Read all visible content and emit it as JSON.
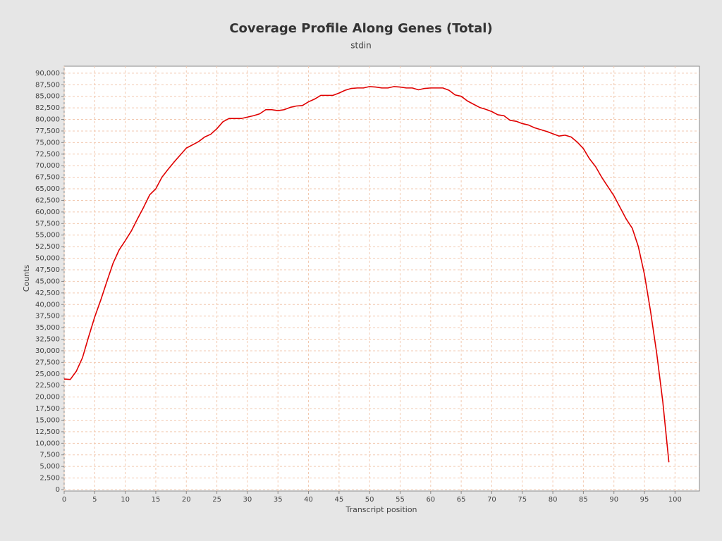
{
  "chart_data": {
    "type": "line",
    "title": "Coverage Profile Along Genes (Total)",
    "subtitle": "stdin",
    "x_label": "Transcript position",
    "y_label": "Counts",
    "color": "#e00000",
    "grid": true,
    "xlim": [
      0,
      104
    ],
    "ylim": [
      0,
      91500
    ],
    "xticks": [
      0,
      5,
      10,
      15,
      20,
      25,
      30,
      35,
      40,
      45,
      50,
      55,
      60,
      65,
      70,
      75,
      80,
      85,
      90,
      95,
      100
    ],
    "yticks": [
      0,
      {
        "value": 2500,
        "label": "2,500"
      },
      {
        "value": 5000,
        "label": "5,000"
      },
      {
        "value": 7500,
        "label": "7,500"
      },
      {
        "value": 10000,
        "label": "10,000"
      },
      {
        "value": 12500,
        "label": "12,500"
      },
      {
        "value": 15000,
        "label": "15,000"
      },
      {
        "value": 17500,
        "label": "17,500"
      },
      {
        "value": 20000,
        "label": "20,000"
      },
      {
        "value": 22500,
        "label": "22,500"
      },
      {
        "value": 25000,
        "label": "25,000"
      },
      {
        "value": 27500,
        "label": "27,500"
      },
      {
        "value": 30000,
        "label": "30,000"
      },
      {
        "value": 32500,
        "label": "32,500"
      },
      {
        "value": 35000,
        "label": "35,000"
      },
      {
        "value": 37500,
        "label": "37,500"
      },
      {
        "value": 40000,
        "label": "40,000"
      },
      {
        "value": 42500,
        "label": "42,500"
      },
      {
        "value": 45000,
        "label": "45,000"
      },
      {
        "value": 47500,
        "label": "47,500"
      },
      {
        "value": 50000,
        "label": "50,000"
      },
      {
        "value": 52500,
        "label": "52,500"
      },
      {
        "value": 55000,
        "label": "55,000"
      },
      {
        "value": 57500,
        "label": "57,500"
      },
      {
        "value": 60000,
        "label": "60,000"
      },
      {
        "value": 62500,
        "label": "62,500"
      },
      {
        "value": 65000,
        "label": "65,000"
      },
      {
        "value": 67500,
        "label": "67,500"
      },
      {
        "value": 70000,
        "label": "70,000"
      },
      {
        "value": 72500,
        "label": "72,500"
      },
      {
        "value": 75000,
        "label": "75,000"
      },
      {
        "value": 77500,
        "label": "77,500"
      },
      {
        "value": 80000,
        "label": "80,000"
      },
      {
        "value": 82500,
        "label": "82,500"
      },
      {
        "value": 85000,
        "label": "85,000"
      },
      {
        "value": 87500,
        "label": "87,500"
      },
      {
        "value": 90000,
        "label": "90,000"
      }
    ],
    "x": [
      0,
      1,
      2,
      3,
      4,
      5,
      6,
      7,
      8,
      9,
      10,
      11,
      12,
      13,
      14,
      15,
      16,
      17,
      18,
      19,
      20,
      21,
      22,
      23,
      24,
      25,
      26,
      27,
      28,
      29,
      30,
      31,
      32,
      33,
      34,
      35,
      36,
      37,
      38,
      39,
      40,
      41,
      42,
      43,
      44,
      45,
      46,
      47,
      48,
      49,
      50,
      51,
      52,
      53,
      54,
      55,
      56,
      57,
      58,
      59,
      60,
      61,
      62,
      63,
      64,
      65,
      66,
      67,
      68,
      69,
      70,
      71,
      72,
      73,
      74,
      75,
      76,
      77,
      78,
      79,
      80,
      81,
      82,
      83,
      84,
      85,
      86,
      87,
      88,
      89,
      90,
      91,
      92,
      93,
      94,
      95,
      96,
      97,
      98,
      99
    ],
    "values": [
      23900,
      23800,
      25600,
      28500,
      33000,
      37300,
      41000,
      45000,
      48900,
      51800,
      53800,
      55900,
      58500,
      61000,
      63700,
      65000,
      67500,
      69200,
      70800,
      72300,
      73800,
      74500,
      75200,
      76200,
      76800,
      78000,
      79500,
      80200,
      80200,
      80200,
      80500,
      80800,
      81200,
      82100,
      82100,
      81900,
      82100,
      82600,
      82900,
      83000,
      83800,
      84400,
      85200,
      85200,
      85200,
      85700,
      86300,
      86700,
      86800,
      86800,
      87100,
      87000,
      86800,
      86800,
      87100,
      87000,
      86800,
      86800,
      86400,
      86700,
      86800,
      86800,
      86800,
      86300,
      85300,
      85000,
      84000,
      83300,
      82600,
      82200,
      81700,
      81000,
      80800,
      79800,
      79600,
      79100,
      78800,
      78200,
      77800,
      77400,
      76900,
      76400,
      76600,
      76200,
      75100,
      73700,
      71500,
      69800,
      67500,
      65500,
      63500,
      61000,
      58500,
      56500,
      52500,
      46500,
      38500,
      29500,
      19000,
      5900
    ]
  }
}
